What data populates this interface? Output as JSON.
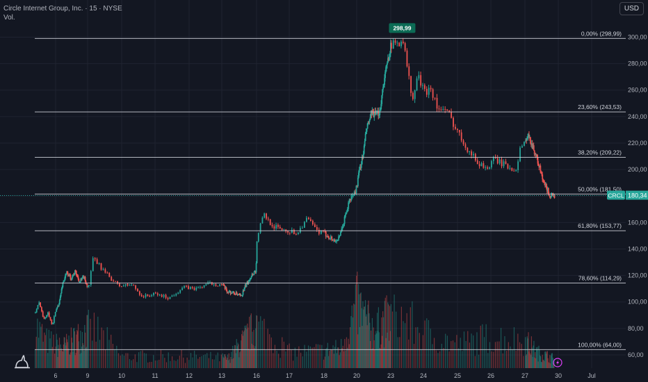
{
  "header": {
    "title": "Circle Internet Group, Inc. · 15 · NYSE",
    "volume_label": "Vol.",
    "currency": "USD"
  },
  "colors": {
    "background": "#131722",
    "up": "#26a69a",
    "down": "#ef5350",
    "fib_line": "#d1d4dc",
    "grid": "#1f2330",
    "price_tag": "#26a69a",
    "peak_tag": "#0c6b55",
    "flash": "#e040fb"
  },
  "chart_data": {
    "type": "candlestick",
    "symbol": "CRCL",
    "last_price": 180.34,
    "last_price_label": "180,34",
    "peak": {
      "value": 298.99,
      "label": "298,99",
      "x_day": 23.35
    },
    "ylim": [
      50,
      306
    ],
    "y_ticks": [
      {
        "v": 60,
        "label": "60,00"
      },
      {
        "v": 80,
        "label": "80,00"
      },
      {
        "v": 100,
        "label": "100,00"
      },
      {
        "v": 120,
        "label": "120,00"
      },
      {
        "v": 140,
        "label": "140,00"
      },
      {
        "v": 160,
        "label": "160,00"
      },
      {
        "v": 180,
        "label": "180,00"
      },
      {
        "v": 200,
        "label": "200,00"
      },
      {
        "v": 220,
        "label": "220,00"
      },
      {
        "v": 240,
        "label": "240,00"
      },
      {
        "v": 260,
        "label": "260,00"
      },
      {
        "v": 280,
        "label": "280,00"
      },
      {
        "v": 300,
        "label": "300,00"
      }
    ],
    "x_ticks": [
      {
        "d": 6,
        "label": "6"
      },
      {
        "d": 9,
        "label": "9"
      },
      {
        "d": 10,
        "label": "10"
      },
      {
        "d": 11,
        "label": "11"
      },
      {
        "d": 12,
        "label": "12"
      },
      {
        "d": 13,
        "label": "13"
      },
      {
        "d": 16,
        "label": "16"
      },
      {
        "d": 17,
        "label": "17"
      },
      {
        "d": 18,
        "label": "18"
      },
      {
        "d": 20,
        "label": "20"
      },
      {
        "d": 23,
        "label": "23"
      },
      {
        "d": 24,
        "label": "24"
      },
      {
        "d": 25,
        "label": "25"
      },
      {
        "d": 26,
        "label": "26"
      },
      {
        "d": 27,
        "label": "27"
      },
      {
        "d": 30,
        "label": "30"
      },
      {
        "d": 31,
        "label": "Jul"
      }
    ],
    "fib_levels": [
      {
        "label": "0,00% (298,99)",
        "value": 298.99
      },
      {
        "label": "23,60% (243,53)",
        "value": 243.53
      },
      {
        "label": "38,20% (209,22)",
        "value": 209.22
      },
      {
        "label": "50,00% (181,50)",
        "value": 181.5
      },
      {
        "label": "61,80% (153,77)",
        "value": 153.77
      },
      {
        "label": "78,60% (114,29)",
        "value": 114.29
      },
      {
        "label": "100,00% (64,00)",
        "value": 64.0
      }
    ],
    "price_path": [
      {
        "d": 5.0,
        "p": 92
      },
      {
        "d": 5.2,
        "p": 100
      },
      {
        "d": 5.4,
        "p": 86
      },
      {
        "d": 5.6,
        "p": 93
      },
      {
        "d": 5.8,
        "p": 82
      },
      {
        "d": 6.0,
        "p": 94
      },
      {
        "d": 6.3,
        "p": 100
      },
      {
        "d": 6.6,
        "p": 114
      },
      {
        "d": 7.0,
        "p": 122
      },
      {
        "d": 7.4,
        "p": 118
      },
      {
        "d": 7.8,
        "p": 123
      },
      {
        "d": 8.2,
        "p": 115
      },
      {
        "d": 8.6,
        "p": 119
      },
      {
        "d": 9.0,
        "p": 110
      },
      {
        "d": 9.15,
        "p": 133
      },
      {
        "d": 9.5,
        "p": 122
      },
      {
        "d": 9.9,
        "p": 112
      },
      {
        "d": 10.3,
        "p": 113
      },
      {
        "d": 10.6,
        "p": 104
      },
      {
        "d": 11.0,
        "p": 106
      },
      {
        "d": 11.4,
        "p": 103
      },
      {
        "d": 11.8,
        "p": 111
      },
      {
        "d": 12.2,
        "p": 110
      },
      {
        "d": 12.6,
        "p": 114
      },
      {
        "d": 13.0,
        "p": 113
      },
      {
        "d": 13.4,
        "p": 108
      },
      {
        "d": 13.8,
        "p": 107
      },
      {
        "d": 14.2,
        "p": 106
      },
      {
        "d": 14.6,
        "p": 104
      },
      {
        "d": 15.0,
        "p": 112
      },
      {
        "d": 15.5,
        "p": 120
      },
      {
        "d": 15.9,
        "p": 124
      },
      {
        "d": 16.0,
        "p": 150
      },
      {
        "d": 16.2,
        "p": 166
      },
      {
        "d": 16.5,
        "p": 157
      },
      {
        "d": 16.9,
        "p": 154
      },
      {
        "d": 17.2,
        "p": 152
      },
      {
        "d": 17.5,
        "p": 163
      },
      {
        "d": 17.8,
        "p": 153
      },
      {
        "d": 18.2,
        "p": 150
      },
      {
        "d": 18.6,
        "p": 146
      },
      {
        "d": 18.9,
        "p": 148
      },
      {
        "d": 19.2,
        "p": 162
      },
      {
        "d": 19.5,
        "p": 176
      },
      {
        "d": 19.9,
        "p": 184
      },
      {
        "d": 20.2,
        "p": 200
      },
      {
        "d": 20.5,
        "p": 210
      },
      {
        "d": 20.8,
        "p": 230
      },
      {
        "d": 21.1,
        "p": 238
      },
      {
        "d": 21.4,
        "p": 243
      },
      {
        "d": 21.7,
        "p": 240
      },
      {
        "d": 22.0,
        "p": 245
      },
      {
        "d": 22.3,
        "p": 265
      },
      {
        "d": 22.6,
        "p": 278
      },
      {
        "d": 22.9,
        "p": 292
      },
      {
        "d": 23.2,
        "p": 296
      },
      {
        "d": 23.35,
        "p": 298.99
      },
      {
        "d": 23.5,
        "p": 275
      },
      {
        "d": 23.65,
        "p": 250
      },
      {
        "d": 23.8,
        "p": 272
      },
      {
        "d": 24.0,
        "p": 258
      },
      {
        "d": 24.2,
        "p": 262
      },
      {
        "d": 24.4,
        "p": 246
      },
      {
        "d": 24.7,
        "p": 243
      },
      {
        "d": 25.0,
        "p": 228
      },
      {
        "d": 25.3,
        "p": 215
      },
      {
        "d": 25.6,
        "p": 205
      },
      {
        "d": 25.9,
        "p": 201
      },
      {
        "d": 26.1,
        "p": 208
      },
      {
        "d": 26.4,
        "p": 203
      },
      {
        "d": 26.7,
        "p": 200
      },
      {
        "d": 26.9,
        "p": 220
      },
      {
        "d": 27.2,
        "p": 225
      },
      {
        "d": 27.5,
        "p": 221
      },
      {
        "d": 27.8,
        "p": 214
      },
      {
        "d": 28.1,
        "p": 206
      },
      {
        "d": 28.3,
        "p": 200
      },
      {
        "d": 28.6,
        "p": 190
      },
      {
        "d": 28.9,
        "p": 186
      },
      {
        "d": 29.2,
        "p": 180
      },
      {
        "d": 29.45,
        "p": 178
      },
      {
        "d": 29.6,
        "p": 180.34
      }
    ],
    "volume_path": [
      {
        "d": 5.0,
        "h": 0.55
      },
      {
        "d": 5.5,
        "h": 0.35
      },
      {
        "d": 6.5,
        "h": 0.25
      },
      {
        "d": 9.2,
        "h": 0.5
      },
      {
        "d": 10.0,
        "h": 0.15
      },
      {
        "d": 12.0,
        "h": 0.15
      },
      {
        "d": 13.5,
        "h": 0.12
      },
      {
        "d": 16.0,
        "h": 0.55
      },
      {
        "d": 17.0,
        "h": 0.2
      },
      {
        "d": 19.0,
        "h": 0.25
      },
      {
        "d": 20.0,
        "h": 0.8
      },
      {
        "d": 21.5,
        "h": 0.45
      },
      {
        "d": 22.5,
        "h": 0.6
      },
      {
        "d": 23.3,
        "h": 0.65
      },
      {
        "d": 24.0,
        "h": 0.45
      },
      {
        "d": 25.0,
        "h": 0.3
      },
      {
        "d": 26.0,
        "h": 0.4
      },
      {
        "d": 27.0,
        "h": 0.35
      },
      {
        "d": 28.0,
        "h": 0.2
      },
      {
        "d": 29.6,
        "h": 0.12
      }
    ]
  }
}
